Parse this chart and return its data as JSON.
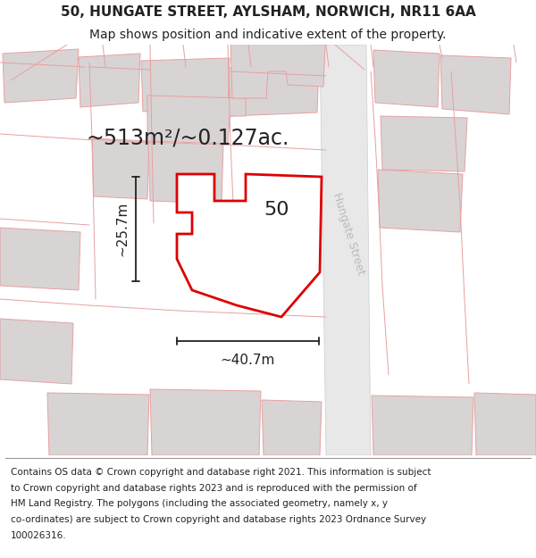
{
  "title_line1": "50, HUNGATE STREET, AYLSHAM, NORWICH, NR11 6AA",
  "title_line2": "Map shows position and indicative extent of the property.",
  "footer_lines": [
    "Contains OS data © Crown copyright and database right 2021. This information is subject",
    "to Crown copyright and database rights 2023 and is reproduced with the permission of",
    "HM Land Registry. The polygons (including the associated geometry, namely x, y",
    "co-ordinates) are subject to Crown copyright and database rights 2023 Ordnance Survey",
    "100026316."
  ],
  "area_label": "~513m²/~0.127ac.",
  "number_label": "50",
  "street_label": "Hungate Street",
  "width_label": "~40.7m",
  "height_label": "~25.7m",
  "bg_color": "#ffffff",
  "map_bg": "#f9f5f5",
  "building_fill": "#d8d4d4",
  "boundary_color": "#e8a0a0",
  "highlight_color": "#dd0000",
  "text_color": "#222222",
  "dim_color": "#222222",
  "street_text_color": "#bbbbbb",
  "title_fontsize": 11,
  "subtitle_fontsize": 10,
  "footer_fontsize": 7.5,
  "area_fontsize": 17,
  "number_fontsize": 16,
  "street_fontsize": 9,
  "dim_fontsize": 11,
  "figsize": [
    6.0,
    6.25
  ],
  "dpi": 100
}
